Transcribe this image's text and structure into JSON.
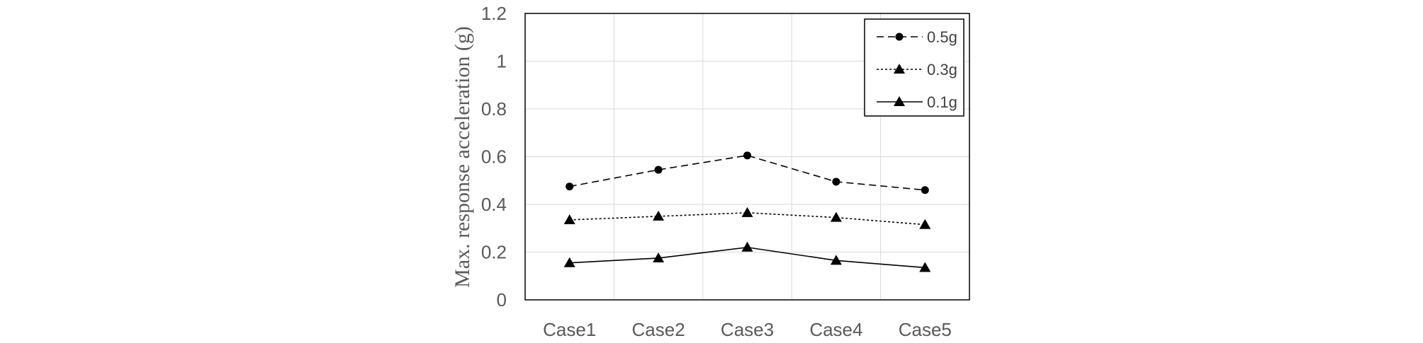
{
  "chart_data": {
    "type": "line",
    "title": "",
    "xlabel": "",
    "ylabel": "Max. response acceleration (g)",
    "categories": [
      "Case1",
      "Case2",
      "Case3",
      "Case4",
      "Case5"
    ],
    "ylim": [
      0,
      1.2
    ],
    "yticks": [
      "0",
      "0.2",
      "0.4",
      "0.6",
      "0.8",
      "1",
      "1.2"
    ],
    "grid": true,
    "legend_position": "top-right",
    "series": [
      {
        "name": "0.5g",
        "values": [
          0.475,
          0.545,
          0.605,
          0.495,
          0.46
        ],
        "line_style": "dashed",
        "marker": "circle",
        "color": "#000000"
      },
      {
        "name": "0.3g",
        "values": [
          0.335,
          0.35,
          0.365,
          0.345,
          0.315
        ],
        "line_style": "dotted",
        "marker": "triangle",
        "color": "#000000"
      },
      {
        "name": "0.1g",
        "values": [
          0.155,
          0.175,
          0.22,
          0.165,
          0.135
        ],
        "line_style": "solid",
        "marker": "triangle",
        "color": "#000000"
      }
    ]
  }
}
